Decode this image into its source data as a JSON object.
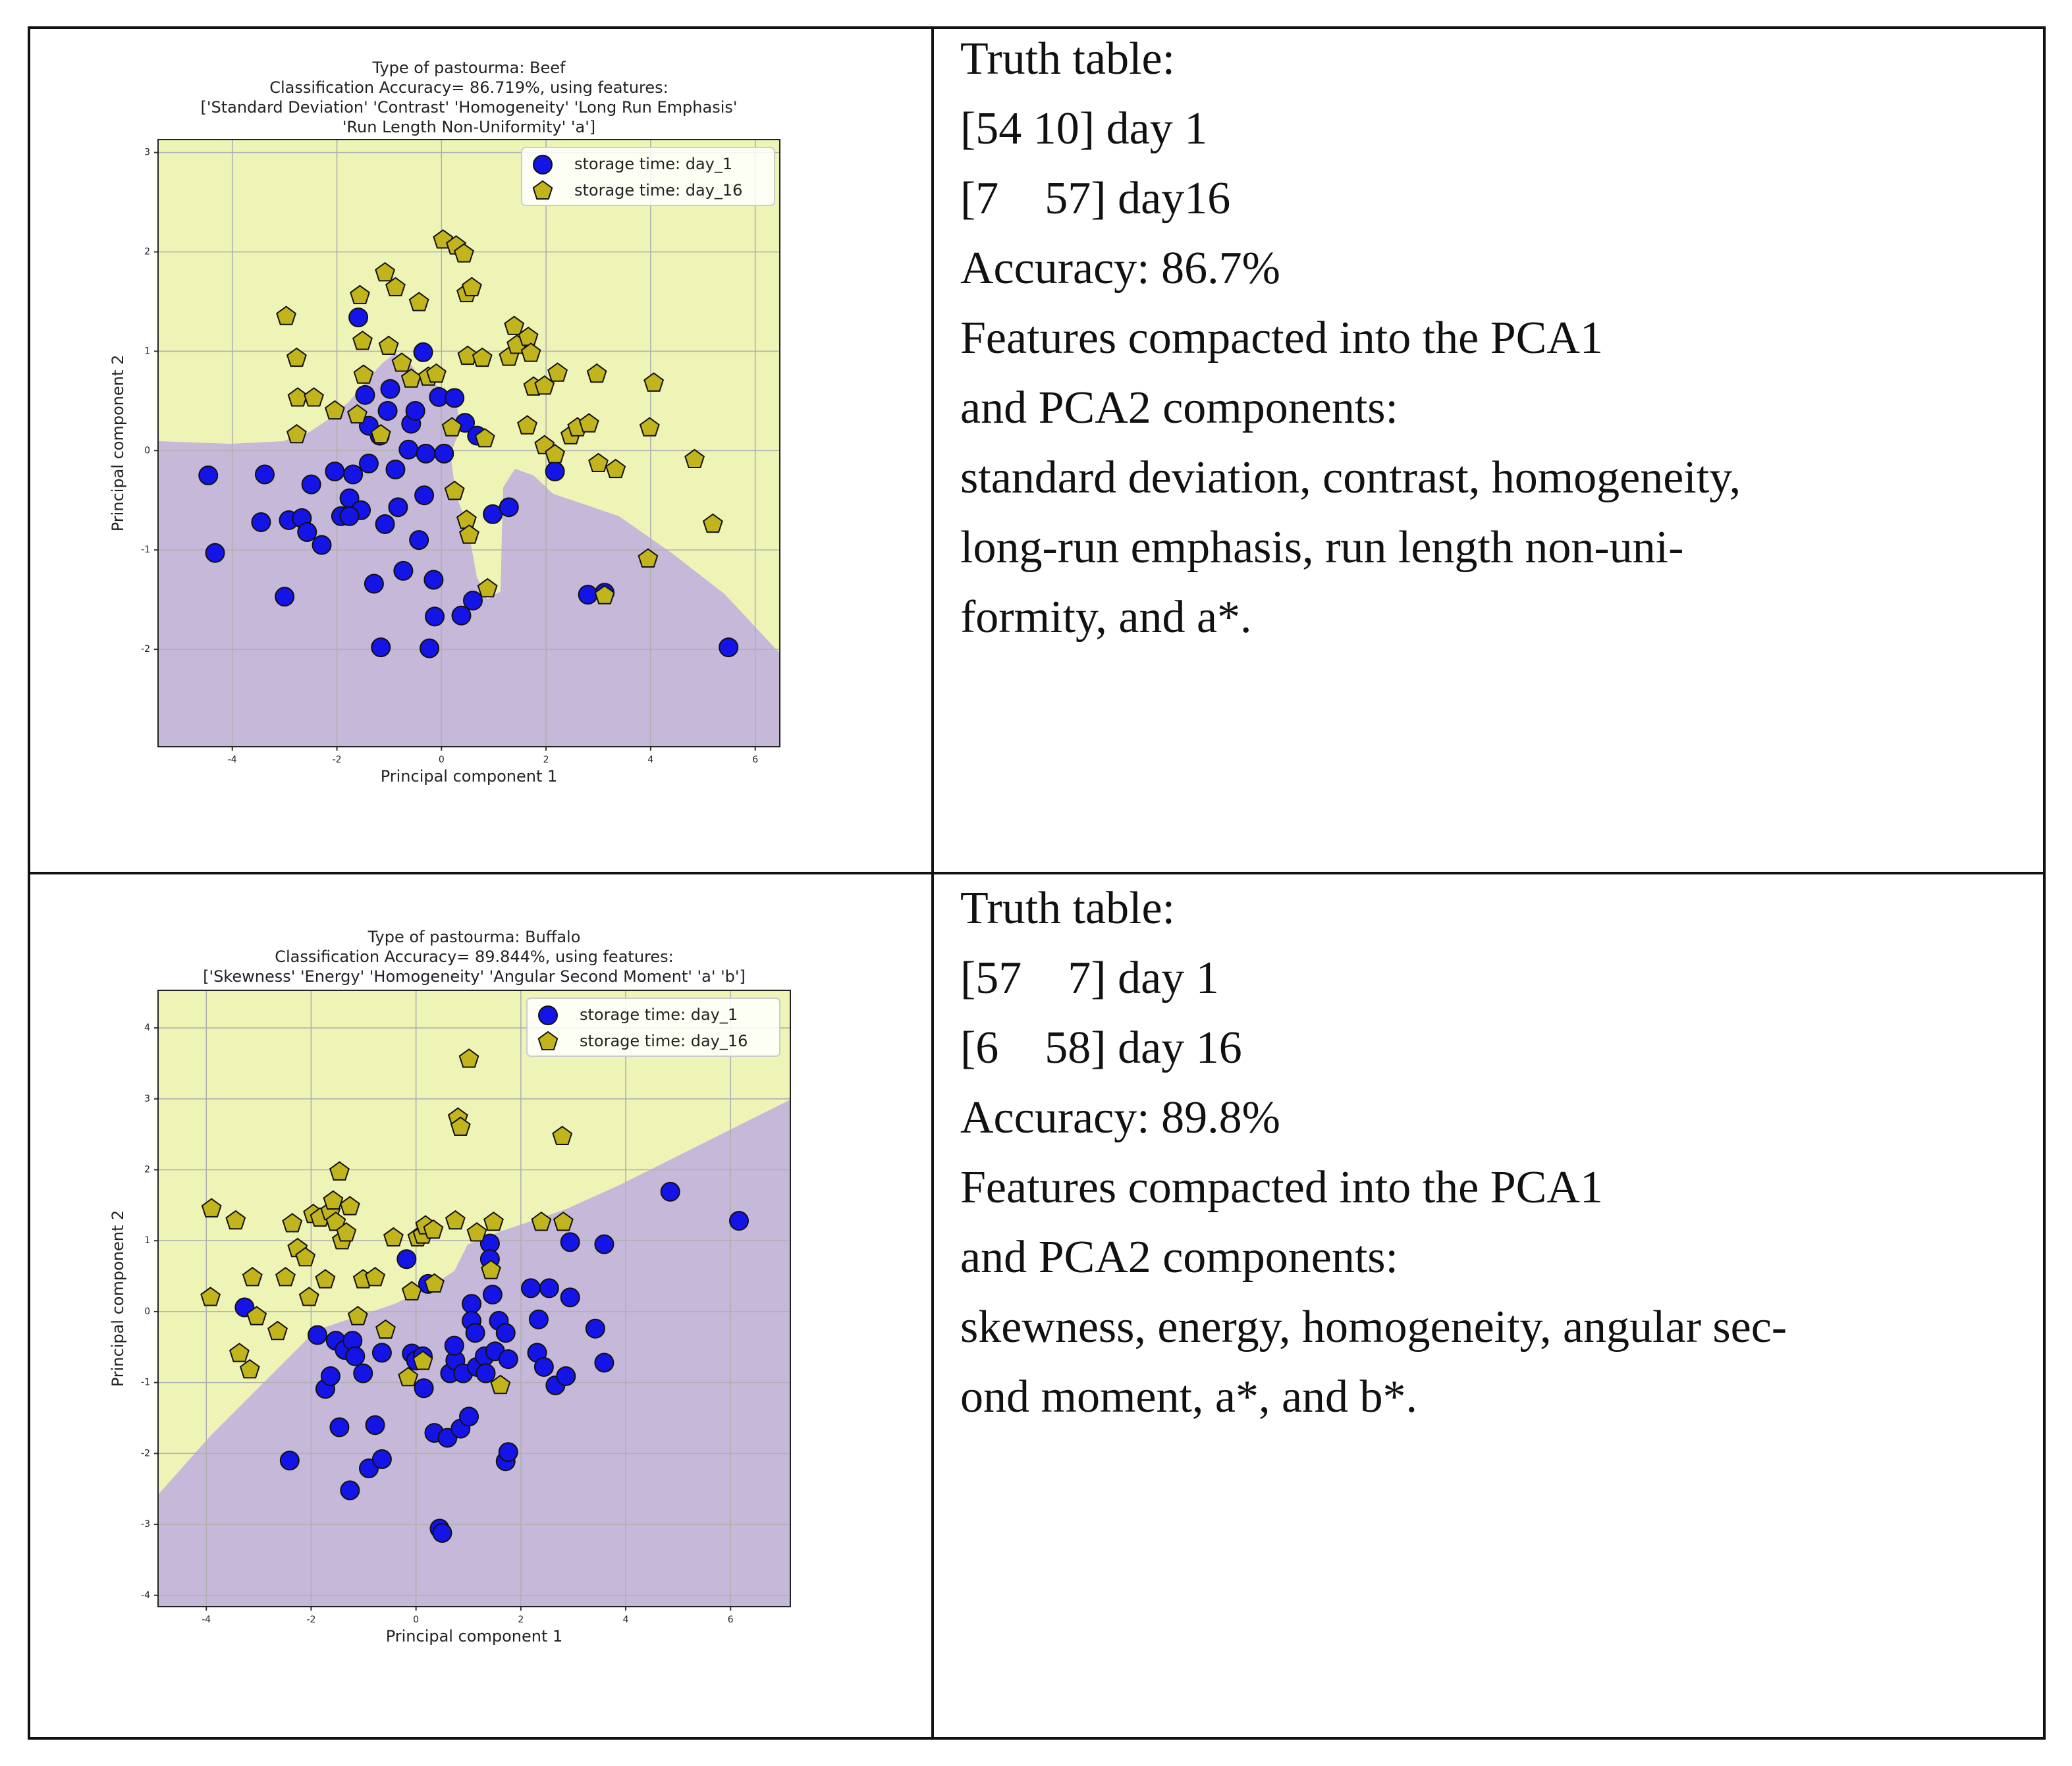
{
  "chart_data": [
    {
      "type": "scatter",
      "title": [
        "Type of pastourma: Beef",
        "Classification Accuracy= 86.719%, using features:",
        "['Standard Deviation' 'Contrast' 'Homogeneity' 'Long Run Emphasis'",
        "'Run Length Non-Uniformity' 'a']"
      ],
      "x_label": "Principal component 1",
      "y_label": "Principal component 2",
      "xlim": [
        -5.42,
        6.47
      ],
      "ylim": [
        -2.98,
        3.13
      ],
      "xticks": [
        -4,
        -2,
        0,
        2,
        4,
        6
      ],
      "yticks": [
        -2,
        -1,
        0,
        1,
        2,
        3
      ],
      "grid": true,
      "legend": "upper right",
      "series": [
        {
          "name": "storage time: day_1",
          "color": "#1414e6",
          "marker": "circle",
          "x": [
            -4.46,
            -4.33,
            -3.38,
            -3.45,
            -3.0,
            -2.92,
            -2.67,
            -2.49,
            -2.57,
            -2.29,
            -2.04,
            -1.92,
            -1.76,
            -1.69,
            -1.59,
            -1.46,
            -1.39,
            -1.29,
            -1.54,
            -1.08,
            -1.18,
            -1.03,
            -0.98,
            -0.83,
            -0.73,
            -0.88,
            -0.63,
            -0.58,
            -0.5,
            -0.43,
            -0.33,
            -0.35,
            -0.3,
            -0.15,
            -0.13,
            -0.23,
            -0.05,
            0.05,
            0.25,
            0.38,
            0.45,
            0.6,
            0.68,
            0.98,
            1.29,
            2.17,
            2.8,
            3.12,
            5.49,
            -1.16,
            -1.39,
            -1.76
          ],
          "values": [
            -0.25,
            -1.03,
            -0.24,
            -0.72,
            -1.47,
            -0.7,
            -0.68,
            -0.34,
            -0.82,
            -0.95,
            -0.21,
            -0.66,
            -0.48,
            -0.24,
            1.34,
            0.56,
            -0.13,
            -1.34,
            -0.6,
            -0.74,
            0.15,
            0.4,
            0.62,
            -0.57,
            -1.21,
            -0.19,
            0.01,
            0.27,
            0.4,
            -0.9,
            -0.45,
            0.99,
            -0.03,
            -1.3,
            -1.67,
            -1.99,
            0.54,
            -0.03,
            0.53,
            -1.66,
            0.28,
            -1.51,
            0.15,
            -0.64,
            -0.57,
            -0.21,
            -1.45,
            -1.43,
            -1.98,
            -1.98,
            0.25,
            -0.66
          ]
        },
        {
          "name": "storage time: day_16",
          "color": "#c2b41c",
          "marker": "pentagon",
          "x": [
            -2.97,
            -2.77,
            -2.75,
            -2.44,
            -2.77,
            -2.04,
            -1.56,
            -1.51,
            -1.49,
            -1.61,
            -1.16,
            -1.08,
            -0.88,
            -1.01,
            -0.76,
            -0.43,
            -0.58,
            -0.25,
            -0.1,
            0.03,
            0.28,
            0.43,
            0.48,
            0.58,
            0.25,
            0.48,
            0.53,
            0.88,
            0.5,
            0.78,
            0.83,
            1.29,
            1.39,
            1.44,
            1.66,
            1.71,
            1.64,
            1.76,
            1.97,
            1.97,
            2.22,
            2.17,
            2.47,
            2.6,
            2.82,
            2.97,
            3.0,
            3.33,
            3.98,
            4.06,
            4.84,
            5.19,
            3.95,
            3.12,
            0.2
          ],
          "values": [
            1.35,
            0.93,
            0.53,
            0.53,
            0.16,
            0.4,
            1.56,
            1.1,
            0.76,
            0.36,
            0.16,
            1.79,
            1.64,
            1.05,
            0.88,
            1.49,
            0.72,
            0.74,
            0.77,
            2.12,
            2.06,
            1.98,
            1.58,
            1.64,
            -0.41,
            -0.7,
            -0.85,
            -1.39,
            0.95,
            0.93,
            0.12,
            0.94,
            1.25,
            1.06,
            1.14,
            0.98,
            0.25,
            0.64,
            0.65,
            0.05,
            0.78,
            -0.04,
            0.15,
            0.23,
            0.27,
            0.77,
            -0.13,
            -0.19,
            0.23,
            0.68,
            -0.09,
            -0.74,
            -1.09,
            -1.46,
            0.23
          ]
        }
      ]
    },
    {
      "type": "scatter",
      "title": [
        "Type of pastourma: Buffalo",
        "Classification Accuracy= 89.844%, using features:",
        "['Skewness' 'Energy' 'Homogeneity' 'Angular Second Moment' 'a' 'b']"
      ],
      "x_label": "Principal component 1",
      "y_label": "Principal component 2",
      "xlim": [
        -4.92,
        7.14
      ],
      "ylim": [
        -4.16,
        4.53
      ],
      "xticks": [
        -4,
        -2,
        0,
        2,
        4,
        6
      ],
      "yticks": [
        -4,
        -3,
        -2,
        -1,
        0,
        1,
        2,
        3,
        4
      ],
      "grid": true,
      "legend": "upper right",
      "series": [
        {
          "name": "storage time: day_1",
          "color": "#1414e6",
          "marker": "circle",
          "x": [
            -3.27,
            -1.88,
            -1.73,
            -1.63,
            -1.53,
            -1.46,
            -1.36,
            -1.26,
            -1.21,
            -1.16,
            -1.01,
            -0.9,
            -0.78,
            -0.65,
            -0.65,
            -2.41,
            -0.18,
            -0.08,
            0,
            0.15,
            0.13,
            0.35,
            0.45,
            0.5,
            0.6,
            0.65,
            0.75,
            0.85,
            0.9,
            1.01,
            1.06,
            1.06,
            1.13,
            1.16,
            1.31,
            1.33,
            1.41,
            1.41,
            1.46,
            1.51,
            1.58,
            1.71,
            1.76,
            1.71,
            1.76,
            2.19,
            2.34,
            2.31,
            2.54,
            2.44,
            2.66,
            2.86,
            2.94,
            2.94,
            3.42,
            3.59,
            3.59,
            4.85,
            6.16,
            0.23,
            0.73
          ],
          "values": [
            0.06,
            -0.33,
            -1.09,
            -0.91,
            -0.41,
            -1.63,
            -0.54,
            -2.52,
            -0.41,
            -0.63,
            -0.87,
            -2.21,
            -1.6,
            -2.08,
            -0.58,
            -2.1,
            0.74,
            -0.59,
            -0.69,
            -1.08,
            -0.63,
            -1.71,
            -3.06,
            -3.12,
            -1.78,
            -0.87,
            -0.69,
            -1.65,
            -0.87,
            -1.48,
            0.11,
            -0.13,
            -0.3,
            -0.78,
            -0.63,
            -0.87,
            0.96,
            0.74,
            0.24,
            -0.56,
            -0.13,
            -0.3,
            -0.67,
            -2.11,
            -1.98,
            0.33,
            -0.11,
            -0.58,
            0.33,
            -0.78,
            -1.04,
            -0.91,
            0.98,
            0.2,
            -0.24,
            0.95,
            -0.72,
            1.69,
            1.28,
            0.39,
            -0.48
          ]
        },
        {
          "name": "storage time: day_16",
          "color": "#c2b41c",
          "marker": "pentagon",
          "x": [
            -3.92,
            -3.9,
            -3.44,
            -3.37,
            -3.17,
            -3.12,
            -3.04,
            -2.64,
            -2.49,
            -2.36,
            -2.26,
            -2.11,
            -2.04,
            -1.96,
            -1.83,
            -1.73,
            -1.63,
            -1.58,
            -1.53,
            -1.46,
            -1.41,
            -1.33,
            -1.26,
            -1.11,
            -1.01,
            -0.78,
            -0.58,
            -0.43,
            -0.08,
            0.03,
            0.13,
            0.18,
            0.33,
            0.35,
            -0.15,
            0.75,
            0.8,
            0.85,
            1.01,
            1.16,
            1.43,
            1.48,
            1.61,
            2.39,
            2.79,
            2.81,
            0.13
          ],
          "values": [
            0.2,
            1.45,
            1.28,
            -0.59,
            -0.82,
            0.48,
            -0.07,
            -0.28,
            0.48,
            1.24,
            0.89,
            0.76,
            0.2,
            1.37,
            1.32,
            0.45,
            1.41,
            1.56,
            1.26,
            1.97,
            1.0,
            1.11,
            1.48,
            -0.07,
            0.45,
            0.48,
            -0.26,
            1.04,
            0.28,
            1.04,
            1.08,
            1.21,
            1.15,
            0.39,
            -0.93,
            1.28,
            2.73,
            2.6,
            3.56,
            1.11,
            0.58,
            1.26,
            -1.04,
            1.26,
            2.47,
            1.26,
            -0.7
          ]
        }
      ]
    }
  ],
  "table": {
    "rows": [
      {
        "text": [
          "Truth table:",
          "[54 10] day 1",
          "[7    57] day16",
          "Accuracy: 86.7%",
          "Features compacted into the PCA1",
          "and PCA2 components:",
          "standard deviation, contrast, homogeneity,",
          "long-run emphasis, run length non-uni-",
          "formity, and a*."
        ]
      },
      {
        "text": [
          "Truth table:",
          "[57    7] day 1",
          "[6    58] day 16",
          "Accuracy: 89.8%",
          "Features compacted into the PCA1",
          "and PCA2 components:",
          "skewness, energy, homogeneity, angular sec-",
          "ond moment, a*, and b*."
        ]
      }
    ]
  }
}
